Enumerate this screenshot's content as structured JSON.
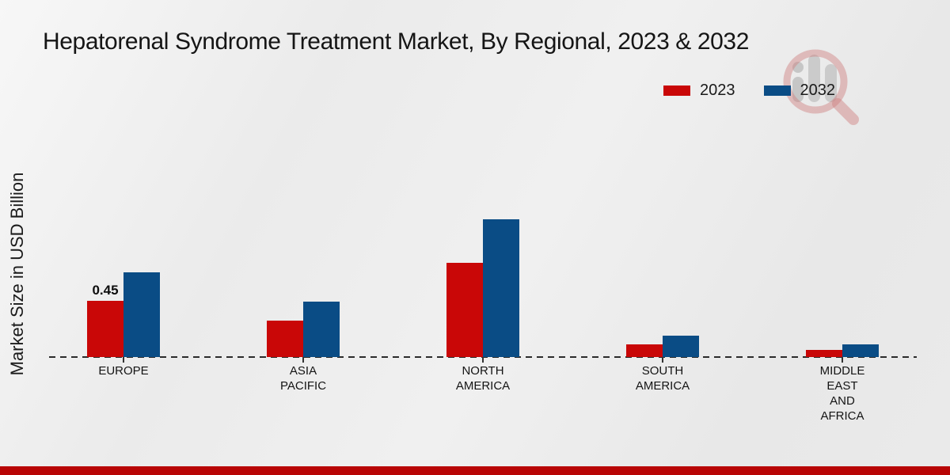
{
  "title": "Hepatorenal Syndrome Treatment Market, By Regional, 2023 & 2032",
  "footer": {
    "bar_color": "#b80505"
  },
  "watermark": {
    "name": "market-research-magnifier-logo",
    "ring_color": "#cf7f7f",
    "glyph_color": "#bfbfbf"
  },
  "chart_data": {
    "type": "bar",
    "title": "Hepatorenal Syndrome Treatment Market, By Regional, 2023 & 2032",
    "xlabel": "",
    "ylabel": "Market Size in USD Billion",
    "categories": [
      "EUROPE",
      "ASIA\nPACIFIC",
      "NORTH\nAMERICA",
      "SOUTH\nAMERICA",
      "MIDDLE\nEAST\nAND\nAFRICA"
    ],
    "series": [
      {
        "name": "2023",
        "color": "#c90707",
        "values": [
          0.45,
          0.29,
          0.75,
          0.1,
          0.06
        ]
      },
      {
        "name": "2032",
        "color": "#0a4c85",
        "values": [
          0.68,
          0.44,
          1.1,
          0.17,
          0.1
        ]
      }
    ],
    "annotations": [
      {
        "category_index": 0,
        "series_index": 0,
        "text": "0.45"
      }
    ],
    "ylim": [
      0,
      1.2
    ],
    "grid": false,
    "baseline_style": "dashed",
    "legend_position": "top-right"
  }
}
